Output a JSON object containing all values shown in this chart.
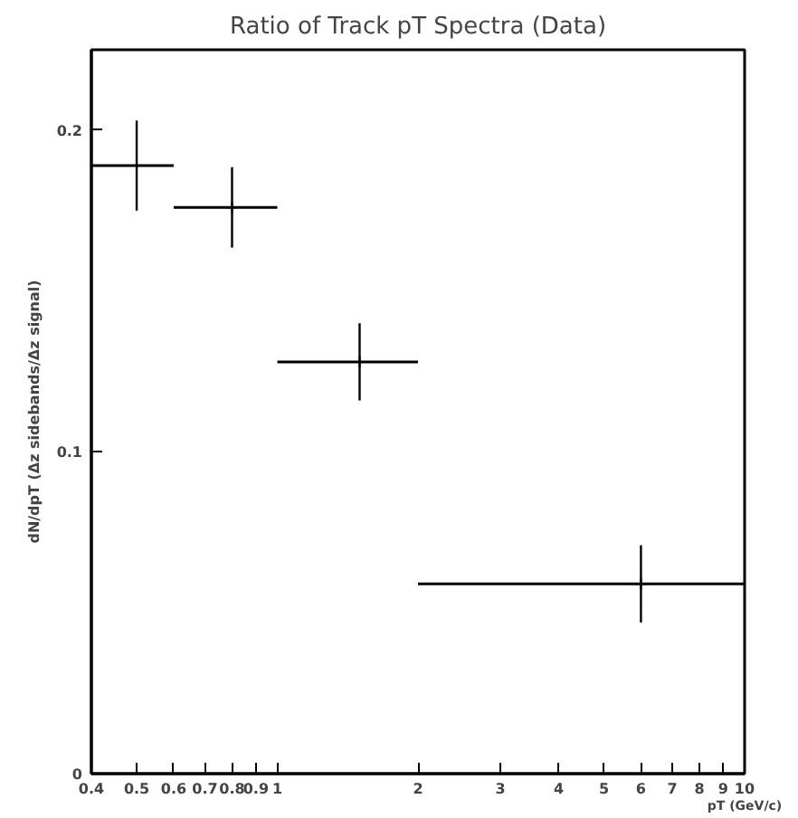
{
  "chart_data": {
    "type": "scatter",
    "title": "Ratio of Track pT Spectra (Data)",
    "xlabel": "pT (GeV/c)",
    "ylabel": "dN/dpT (Δz sidebands/Δz signal)",
    "x": [
      0.5,
      0.8,
      1.5,
      6
    ],
    "series": [
      {
        "color": "#000000",
        "values": [
          0.189,
          0.176,
          0.128,
          0.059
        ],
        "errors": [
          0.014,
          0.0125,
          0.012,
          0.012
        ],
        "xerrors": [
          [
            0.4,
            0.6
          ],
          [
            0.6,
            1.0
          ],
          [
            1.0,
            2.0
          ],
          [
            2.0,
            10.0
          ]
        ]
      }
    ],
    "marker": "cross",
    "log": "x",
    "grid": false,
    "xlim": [
      0.4,
      10
    ],
    "ylim": [
      0,
      0.225
    ],
    "xticks": [
      0.4,
      0.5,
      0.6,
      0.7,
      0.8,
      0.9,
      1,
      2,
      3,
      4,
      5,
      6,
      7,
      8,
      9,
      10
    ],
    "yticks": [
      0,
      0.1,
      0.2
    ]
  }
}
